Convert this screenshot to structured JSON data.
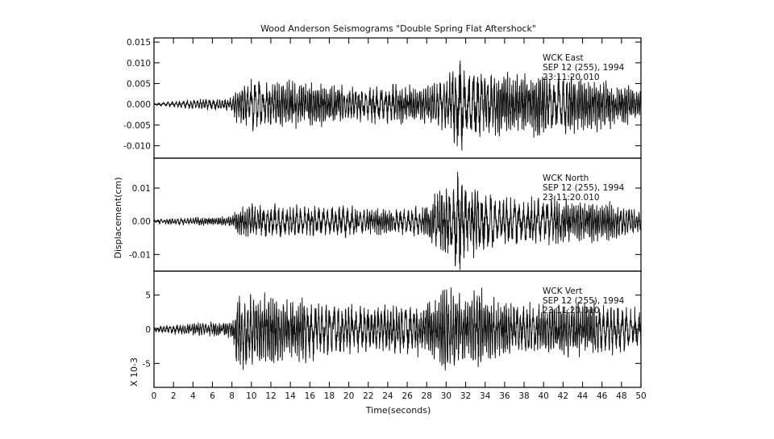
{
  "chart_data": {
    "type": "line",
    "title": "Wood Anderson Seismograms \"Double Spring Flat Aftershock\"",
    "xlabel": "Time(seconds)",
    "ylabel": "Displacement(cm)",
    "xlim": [
      0,
      50
    ],
    "x_ticks": [
      "0",
      "2",
      "4",
      "6",
      "8",
      "10",
      "12",
      "14",
      "16",
      "18",
      "20",
      "22",
      "24",
      "26",
      "28",
      "30",
      "32",
      "34",
      "36",
      "38",
      "40",
      "42",
      "44",
      "46",
      "48",
      "50"
    ],
    "grid": false,
    "panels": [
      {
        "station": "WCK",
        "component": "East",
        "date_line": "SEP 12 (255), 1994",
        "time_line": "23:11:20.010",
        "ylim": [
          -0.013,
          0.016
        ],
        "y_ticks": [
          "0.015",
          "0.010",
          "0.005",
          "0.000",
          "-0.005",
          "-0.010"
        ],
        "y_tick_values": [
          0.015,
          0.01,
          0.005,
          0.0,
          -0.005,
          -0.01
        ],
        "envelope": {
          "t": [
            0,
            2,
            4,
            6,
            7.8,
            8.5,
            10,
            14,
            20,
            26,
            28,
            30,
            31.2,
            32,
            33,
            34,
            36,
            40,
            44,
            48,
            50
          ],
          "amplitude": [
            0.0004,
            0.0008,
            0.0013,
            0.0016,
            0.0016,
            0.005,
            0.007,
            0.0065,
            0.005,
            0.0055,
            0.006,
            0.0075,
            0.015,
            0.009,
            0.0115,
            0.009,
            0.0085,
            0.0085,
            0.008,
            0.006,
            0.004
          ]
        },
        "seed": 11
      },
      {
        "station": "WCK",
        "component": "North",
        "date_line": "SEP 12 (255), 1994",
        "time_line": "23:11:20.010",
        "ylim": [
          -0.015,
          0.019
        ],
        "y_ticks": [
          "0.01",
          "0.00",
          "-0.01"
        ],
        "y_tick_values": [
          0.01,
          0.0,
          -0.01
        ],
        "envelope": {
          "t": [
            0,
            2,
            6,
            8,
            8.5,
            10,
            14,
            20,
            26,
            28,
            29,
            30,
            31.3,
            32,
            33,
            34,
            36,
            40,
            44,
            48,
            50
          ],
          "amplitude": [
            0.0008,
            0.0012,
            0.0015,
            0.0018,
            0.005,
            0.006,
            0.0055,
            0.005,
            0.0045,
            0.006,
            0.01,
            0.012,
            0.018,
            0.012,
            0.014,
            0.01,
            0.008,
            0.008,
            0.0075,
            0.006,
            0.004
          ]
        },
        "seed": 23
      },
      {
        "station": "WCK",
        "component": "Vert",
        "date_line": "SEP 12 (255), 1994",
        "time_line": "23:11:20.010",
        "ylim": [
          -8.5,
          8.5
        ],
        "y_ticks": [
          "5",
          "0",
          "-5"
        ],
        "y_tick_values": [
          5,
          0,
          -5
        ],
        "scale_label": "X 10-3",
        "envelope": {
          "t": [
            0,
            2,
            6,
            8,
            8.5,
            9.5,
            10,
            12,
            14,
            20,
            26,
            29,
            30,
            31,
            32,
            33.3,
            34,
            36,
            40,
            44,
            48,
            50
          ],
          "amplitude": [
            0.4,
            0.8,
            1.2,
            1.5,
            6.5,
            7.5,
            6.5,
            6.0,
            5.5,
            4.0,
            4.0,
            5.0,
            7.5,
            6.0,
            5.0,
            8.0,
            5.5,
            4.5,
            4.5,
            4.5,
            4.0,
            3.0
          ]
        },
        "seed": 37
      }
    ]
  }
}
